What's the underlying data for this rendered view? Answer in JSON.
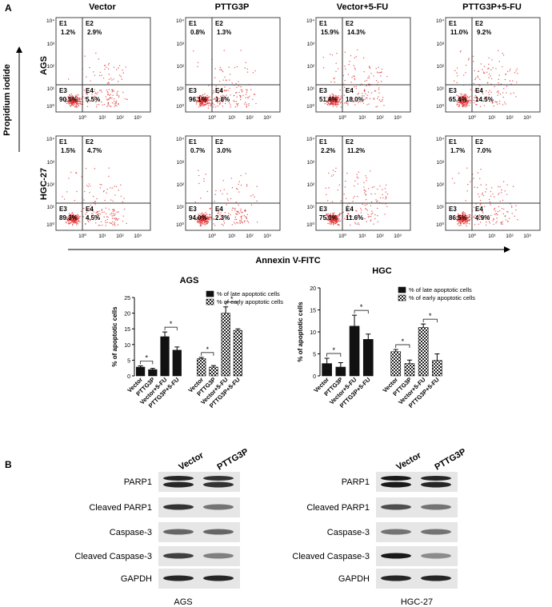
{
  "panel_a": {
    "label": "A",
    "columns": [
      "Vector",
      "PTTG3P",
      "Vector+5-FU",
      "PTTG3P+5-FU"
    ],
    "rows": [
      "AGS",
      "HGC-27"
    ],
    "y_axis_title": "Propidium iodide",
    "x_axis_title": "Annexin V-FITC",
    "x_tick_labels": [
      "10⁰",
      "10¹",
      "10²",
      "10³"
    ],
    "y_tick_labels": [
      "10⁰",
      "10¹",
      "10²",
      "10³",
      "10⁴"
    ],
    "quadrant_labels": [
      "E1",
      "E2",
      "E3",
      "E4"
    ],
    "plots": [
      [
        [
          "1.2%",
          "2.9%",
          "90.5%",
          "5.5%"
        ],
        [
          "0.8%",
          "1.3%",
          "96.1%",
          "1.8%"
        ],
        [
          "15.9%",
          "14.3%",
          "51.8%",
          "18.0%"
        ],
        [
          "11.0%",
          "9.2%",
          "65.4%",
          "14.5%"
        ]
      ],
      [
        [
          "1.5%",
          "4.7%",
          "89.3%",
          "4.5%"
        ],
        [
          "0.7%",
          "3.0%",
          "94.0%",
          "2.3%"
        ],
        [
          "2.2%",
          "11.2%",
          "75.0%",
          "11.6%"
        ],
        [
          "1.7%",
          "7.0%",
          "86.5%",
          "4.9%"
        ]
      ]
    ]
  },
  "chart_data": [
    {
      "type": "bar",
      "title": "AGS",
      "y_label": "% of apoptotic cells",
      "categories": [
        "Vector",
        "PTTG3P",
        "Vector+5-FU",
        "PTTG3P+5-FU",
        "Vector",
        "PTTG3P",
        "Vector+5-FU",
        "PTTG3P+5-FU"
      ],
      "series": [
        {
          "name": "% of late apoptotic cells",
          "color": "#111111",
          "pattern": "solid",
          "values": [
            2.8,
            2.0,
            12.5,
            8.2,
            null,
            null,
            null,
            null
          ],
          "errors": [
            0.4,
            0.4,
            1.5,
            1.0,
            null,
            null,
            null,
            null
          ]
        },
        {
          "name": "% of early apoptotic cells",
          "color": "#111111",
          "pattern": "checker",
          "values": [
            null,
            null,
            null,
            null,
            5.5,
            2.8,
            20.0,
            14.5
          ],
          "errors": [
            null,
            null,
            null,
            null,
            0.4,
            0.5,
            2.0,
            0.5
          ]
        }
      ],
      "annotations": [
        "*",
        "*",
        "*",
        "*"
      ],
      "ylim": [
        0,
        25
      ],
      "yticks": [
        0,
        5,
        10,
        15,
        20,
        25
      ]
    },
    {
      "type": "bar",
      "title": "HGC",
      "y_label": "% of apoptotic cells",
      "categories": [
        "Vector",
        "PTTG3P",
        "Vector+5-FU",
        "PTTG3P+5-FU",
        "Vector",
        "PTTG3P",
        "Vector+5-FU",
        "PTTG3P+5-FU"
      ],
      "series": [
        {
          "name": "% of late apoptotic cells",
          "color": "#111111",
          "pattern": "solid",
          "values": [
            2.8,
            2.0,
            11.3,
            8.3,
            null,
            null,
            null,
            null
          ],
          "errors": [
            1.2,
            1.0,
            2.5,
            1.2,
            null,
            null,
            null,
            null
          ]
        },
        {
          "name": "% of early apoptotic cells",
          "color": "#111111",
          "pattern": "checker",
          "values": [
            null,
            null,
            null,
            null,
            5.5,
            2.8,
            11.0,
            3.5
          ],
          "errors": [
            null,
            null,
            null,
            null,
            0.5,
            0.8,
            0.8,
            1.5
          ]
        }
      ],
      "annotations": [
        "*",
        "*",
        "*",
        "*"
      ],
      "ylim": [
        0,
        20
      ],
      "yticks": [
        0,
        5,
        10,
        15,
        20
      ]
    }
  ],
  "panel_b": {
    "label": "B",
    "columns": [
      "Vector",
      "PTTG3P"
    ],
    "proteins": [
      "PARP1",
      "Cleaved PARP1",
      "Caspase-3",
      "Cleaved Caspase-3",
      "GAPDH"
    ],
    "cell_lines": [
      "AGS",
      "HGC-27"
    ]
  }
}
